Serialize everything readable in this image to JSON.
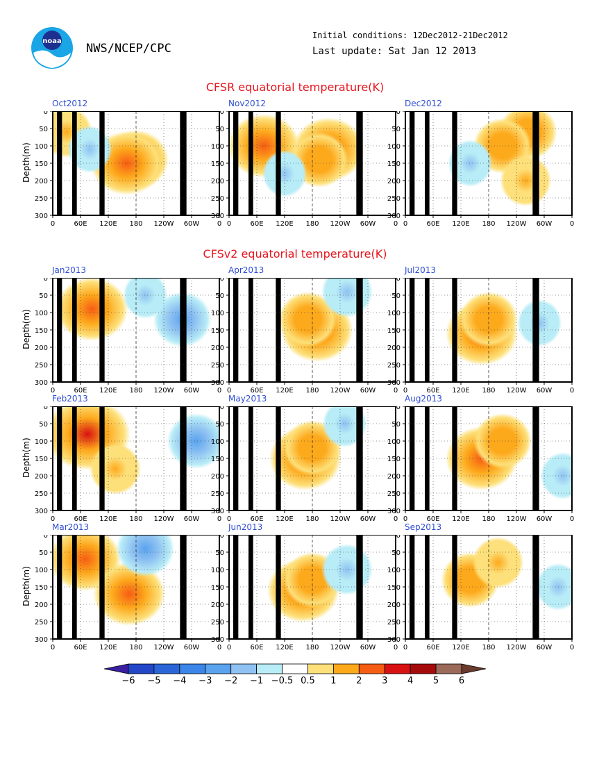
{
  "header": {
    "org": "NWS/NCEP/CPC",
    "logo_text": "noaa",
    "initial_conditions": "Initial conditions: 12Dec2012-21Dec2012",
    "last_update": "Last update: Sat Jan 12 2013"
  },
  "sections": {
    "cfsr_title": "CFSR equatorial temperature(K)",
    "cfsv2_title": "CFSv2 equatorial temperature(K)"
  },
  "axes": {
    "ylabel": "Depth(m)",
    "yticks": [
      "0",
      "50",
      "100",
      "150",
      "200",
      "250",
      "300"
    ],
    "xticks": [
      "0",
      "60E",
      "120E",
      "180",
      "120W",
      "60W",
      "0"
    ]
  },
  "colors": {
    "title_red": "#e8151d",
    "label_blue": "#2e4dd4",
    "land": "#000000"
  },
  "chart_data": [
    {
      "type": "heatmap",
      "label": "Oct2012",
      "group": "CFSR",
      "xlabel": "",
      "ylabel": "Depth(m)",
      "ylim": [
        300,
        0
      ],
      "anomalies": [
        {
          "lon": 180,
          "depth": 140,
          "value": 2.5
        },
        {
          "lon": 30,
          "depth": 60,
          "value": 1.5
        },
        {
          "lon": 160,
          "depth": 150,
          "value": 3
        },
        {
          "lon": 80,
          "depth": 110,
          "value": -1
        }
      ]
    },
    {
      "type": "heatmap",
      "label": "Nov2012",
      "group": "CFSR",
      "xlabel": "",
      "ylabel": "Depth(m)",
      "ylim": [
        300,
        0
      ],
      "anomalies": [
        {
          "lon": 215,
          "depth": 110,
          "value": 3
        },
        {
          "lon": 75,
          "depth": 100,
          "value": 3
        },
        {
          "lon": 195,
          "depth": 140,
          "value": 2
        },
        {
          "lon": 120,
          "depth": 180,
          "value": -1
        }
      ]
    },
    {
      "type": "heatmap",
      "label": "Dec2012",
      "group": "CFSR",
      "xlabel": "",
      "ylabel": "Depth(m)",
      "ylim": [
        300,
        0
      ],
      "anomalies": [
        {
          "lon": 265,
          "depth": 60,
          "value": 2
        },
        {
          "lon": 210,
          "depth": 100,
          "value": 2
        },
        {
          "lon": 260,
          "depth": 200,
          "value": 1.5
        },
        {
          "lon": 140,
          "depth": 150,
          "value": -1
        }
      ]
    },
    {
      "type": "heatmap",
      "label": "Jan2013",
      "group": "CFSv2",
      "xlabel": "",
      "ylabel": "Depth(m)",
      "ylim": [
        300,
        0
      ],
      "anomalies": [
        {
          "lon": 85,
          "depth": 90,
          "value": 3
        },
        {
          "lon": 200,
          "depth": 50,
          "value": -1
        },
        {
          "lon": 280,
          "depth": 120,
          "value": -2
        }
      ]
    },
    {
      "type": "heatmap",
      "label": "Apr2013",
      "group": "CFSv2",
      "xlabel": "",
      "ylabel": "Depth(m)",
      "ylim": [
        300,
        0
      ],
      "anomalies": [
        {
          "lon": 190,
          "depth": 150,
          "value": 3
        },
        {
          "lon": 170,
          "depth": 120,
          "value": 2
        },
        {
          "lon": 255,
          "depth": 40,
          "value": -1.5
        }
      ]
    },
    {
      "type": "heatmap",
      "label": "Jul2013",
      "group": "CFSv2",
      "xlabel": "",
      "ylabel": "Depth(m)",
      "ylim": [
        300,
        0
      ],
      "anomalies": [
        {
          "lon": 165,
          "depth": 160,
          "value": 3
        },
        {
          "lon": 180,
          "depth": 120,
          "value": 2
        },
        {
          "lon": 290,
          "depth": 130,
          "value": -1
        }
      ]
    },
    {
      "type": "heatmap",
      "label": "Feb2013",
      "group": "CFSv2",
      "xlabel": "",
      "ylabel": "Depth(m)",
      "ylim": [
        300,
        0
      ],
      "anomalies": [
        {
          "lon": 75,
          "depth": 80,
          "value": 4
        },
        {
          "lon": 135,
          "depth": 180,
          "value": 1.5
        },
        {
          "lon": 310,
          "depth": 100,
          "value": -2
        }
      ]
    },
    {
      "type": "heatmap",
      "label": "May2013",
      "group": "CFSv2",
      "xlabel": "",
      "ylabel": "Depth(m)",
      "ylim": [
        300,
        0
      ],
      "anomalies": [
        {
          "lon": 165,
          "depth": 150,
          "value": 3
        },
        {
          "lon": 180,
          "depth": 120,
          "value": 2
        },
        {
          "lon": 250,
          "depth": 50,
          "value": -1
        }
      ]
    },
    {
      "type": "heatmap",
      "label": "Aug2013",
      "group": "CFSv2",
      "xlabel": "",
      "ylabel": "Depth(m)",
      "ylim": [
        300,
        0
      ],
      "anomalies": [
        {
          "lon": 165,
          "depth": 150,
          "value": 3
        },
        {
          "lon": 210,
          "depth": 100,
          "value": 2
        },
        {
          "lon": 340,
          "depth": 200,
          "value": -1
        }
      ]
    },
    {
      "type": "heatmap",
      "label": "Mar2013",
      "group": "CFSv2",
      "xlabel": "",
      "ylabel": "Depth(m)",
      "ylim": [
        300,
        0
      ],
      "anomalies": [
        {
          "lon": 70,
          "depth": 70,
          "value": 3
        },
        {
          "lon": 165,
          "depth": 170,
          "value": 3
        },
        {
          "lon": 200,
          "depth": 40,
          "value": -2
        }
      ]
    },
    {
      "type": "heatmap",
      "label": "Jun2013",
      "group": "CFSv2",
      "xlabel": "",
      "ylabel": "Depth(m)",
      "ylim": [
        300,
        0
      ],
      "anomalies": [
        {
          "lon": 160,
          "depth": 160,
          "value": 3
        },
        {
          "lon": 180,
          "depth": 130,
          "value": 2
        },
        {
          "lon": 255,
          "depth": 100,
          "value": -1.5
        }
      ]
    },
    {
      "type": "heatmap",
      "label": "Sep2013",
      "group": "CFSv2",
      "xlabel": "",
      "ylabel": "Depth(m)",
      "ylim": [
        300,
        0
      ],
      "anomalies": [
        {
          "lon": 140,
          "depth": 130,
          "value": 2
        },
        {
          "lon": 200,
          "depth": 80,
          "value": 1.5
        },
        {
          "lon": 330,
          "depth": 150,
          "value": -1
        }
      ]
    }
  ],
  "colorbar": {
    "labels": [
      "-6",
      "-5",
      "-4",
      "-3",
      "-2",
      "-1",
      "-0.5",
      "0.5",
      "1",
      "2",
      "3",
      "4",
      "5",
      "6"
    ],
    "colors": [
      "#3a1fa0",
      "#2447c8",
      "#2a66d8",
      "#3b86e8",
      "#5aa3ee",
      "#8fc2f2",
      "#b8ecf6",
      "#ffffff",
      "#fde07a",
      "#fda91c",
      "#f65d14",
      "#d81212",
      "#a60b0b",
      "#9b6a5b",
      "#6b3b2e"
    ]
  }
}
